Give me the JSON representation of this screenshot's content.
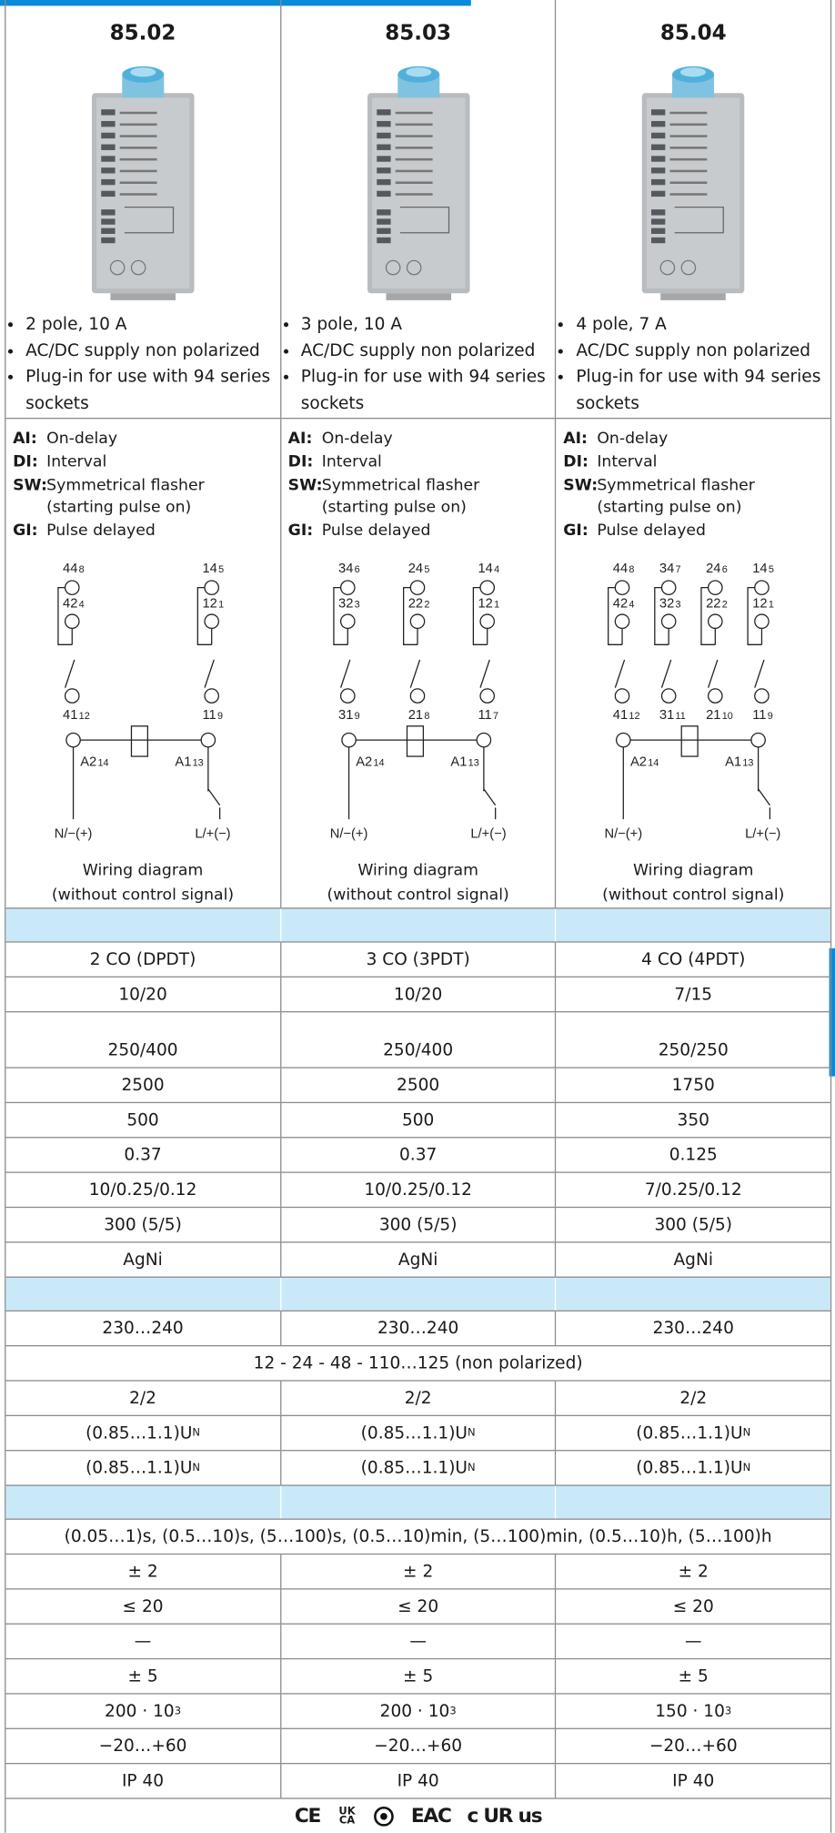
{
  "columns": [
    {
      "title": "85.02",
      "features": [
        "2 pole, 10 A",
        "AC/DC supply non polarized",
        "Plug-in for use with 94 series sockets"
      ],
      "functions": [
        {
          "code": "AI:",
          "text": "On-delay"
        },
        {
          "code": "DI:",
          "text": "Interval"
        },
        {
          "code": "SW:",
          "text": "Symmetrical flasher (starting pulse on)"
        },
        {
          "code": "GI:",
          "text": "Pulse delayed"
        }
      ],
      "wiring": {
        "contacts": [
          {
            "no": "44",
            "no_pin": "8",
            "nc": "42",
            "nc_pin": "4",
            "com": "41",
            "com_pin": "12"
          },
          {
            "no": "14",
            "no_pin": "5",
            "nc": "12",
            "nc_pin": "1",
            "com": "11",
            "com_pin": "9"
          }
        ],
        "coil": [
          {
            "label": "A2",
            "pin": "14"
          },
          {
            "label": "A1",
            "pin": "13"
          }
        ],
        "supply": [
          "N/−(+)",
          "L/+(−)"
        ],
        "caption": [
          "Wiring diagram",
          "(without control signal)"
        ]
      }
    },
    {
      "title": "85.03",
      "features": [
        "3 pole, 10 A",
        "AC/DC supply non polarized",
        "Plug-in for use with 94 series sockets"
      ],
      "functions": [
        {
          "code": "AI:",
          "text": "On-delay"
        },
        {
          "code": "DI:",
          "text": "Interval"
        },
        {
          "code": "SW:",
          "text": "Symmetrical flasher (starting pulse on)"
        },
        {
          "code": "GI:",
          "text": "Pulse delayed"
        }
      ],
      "wiring": {
        "contacts": [
          {
            "no": "34",
            "no_pin": "6",
            "nc": "32",
            "nc_pin": "3",
            "com": "31",
            "com_pin": "9"
          },
          {
            "no": "24",
            "no_pin": "5",
            "nc": "22",
            "nc_pin": "2",
            "com": "21",
            "com_pin": "8"
          },
          {
            "no": "14",
            "no_pin": "4",
            "nc": "12",
            "nc_pin": "1",
            "com": "11",
            "com_pin": "7"
          }
        ],
        "coil": [
          {
            "label": "A2",
            "pin": "14"
          },
          {
            "label": "A1",
            "pin": "13"
          }
        ],
        "supply": [
          "N/−(+)",
          "L/+(−)"
        ],
        "caption": [
          "Wiring diagram",
          "(without control signal)"
        ]
      }
    },
    {
      "title": "85.04",
      "features": [
        "4 pole, 7 A",
        "AC/DC supply non polarized",
        "Plug-in for use with 94 series sockets"
      ],
      "functions": [
        {
          "code": "AI:",
          "text": "On-delay"
        },
        {
          "code": "DI:",
          "text": "Interval"
        },
        {
          "code": "SW:",
          "text": "Symmetrical flasher (starting pulse on)"
        },
        {
          "code": "GI:",
          "text": "Pulse delayed"
        }
      ],
      "wiring": {
        "contacts": [
          {
            "no": "44",
            "no_pin": "8",
            "nc": "42",
            "nc_pin": "4",
            "com": "41",
            "com_pin": "12"
          },
          {
            "no": "34",
            "no_pin": "7",
            "nc": "32",
            "nc_pin": "3",
            "com": "31",
            "com_pin": "11"
          },
          {
            "no": "24",
            "no_pin": "6",
            "nc": "22",
            "nc_pin": "2",
            "com": "21",
            "com_pin": "10"
          },
          {
            "no": "14",
            "no_pin": "5",
            "nc": "12",
            "nc_pin": "1",
            "com": "11",
            "com_pin": "9"
          }
        ],
        "coil": [
          {
            "label": "A2",
            "pin": "14"
          },
          {
            "label": "A1",
            "pin": "13"
          }
        ],
        "supply": [
          "N/−(+)",
          "L/+(−)"
        ],
        "caption": [
          "Wiring diagram",
          "(without control signal)"
        ]
      }
    }
  ],
  "sections": [
    {
      "rows": [
        {
          "cells": [
            "2 CO (DPDT)",
            "3 CO (3PDT)",
            "4 CO (4PDT)"
          ]
        },
        {
          "cells": [
            "10/20",
            "10/20",
            "7/15"
          ]
        },
        {
          "cells": [
            "250/400",
            "250/400",
            "250/250"
          ]
        },
        {
          "cells": [
            "2500",
            "2500",
            "1750"
          ]
        },
        {
          "cells": [
            "500",
            "500",
            "350"
          ]
        },
        {
          "cells": [
            "0.37",
            "0.37",
            "0.125"
          ]
        },
        {
          "cells": [
            "10/0.25/0.12",
            "10/0.25/0.12",
            "7/0.25/0.12"
          ]
        },
        {
          "cells": [
            "300 (5/5)",
            "300 (5/5)",
            "300 (5/5)"
          ]
        },
        {
          "cells": [
            "AgNi",
            "AgNi",
            "AgNi"
          ]
        }
      ]
    },
    {
      "rows": [
        {
          "cells": [
            "230…240",
            "230…240",
            "230…240"
          ]
        },
        {
          "span": "12 - 24 - 48 - 110…125 (non polarized)"
        },
        {
          "cells": [
            "2/2",
            "2/2",
            "2/2"
          ]
        },
        {
          "cells": [
            {
              "text": "(0.85…1.1)U",
              "sub": "N"
            },
            {
              "text": "(0.85…1.1)U",
              "sub": "N"
            },
            {
              "text": "(0.85…1.1)U",
              "sub": "N"
            }
          ]
        },
        {
          "cells": [
            {
              "text": "(0.85…1.1)U",
              "sub": "N"
            },
            {
              "text": "(0.85…1.1)U",
              "sub": "N"
            },
            {
              "text": "(0.85…1.1)U",
              "sub": "N"
            }
          ]
        }
      ]
    },
    {
      "rows": [
        {
          "span": "(0.05…1)s, (0.5…10)s, (5…100)s, (0.5…10)min, (5…100)min, (0.5…10)h, (5…100)h"
        },
        {
          "cells": [
            "± 2",
            "± 2",
            "± 2"
          ]
        },
        {
          "cells": [
            "≤ 20",
            "≤ 20",
            "≤ 20"
          ]
        },
        {
          "cells": [
            "—",
            "—",
            "—"
          ]
        },
        {
          "cells": [
            "± 5",
            "± 5",
            "± 5"
          ]
        },
        {
          "cells": [
            {
              "text": "200 · 10",
              "sup": "3"
            },
            {
              "text": "200 · 10",
              "sup": "3"
            },
            {
              "text": "150 · 10",
              "sup": "3"
            }
          ]
        },
        {
          "cells": [
            "−20…+60",
            "−20…+60",
            "−20…+60"
          ]
        },
        {
          "cells": [
            "IP 40",
            "IP 40",
            "IP 40"
          ]
        }
      ]
    }
  ],
  "certifications": [
    "CE",
    "UK CA",
    "EAC",
    "c UR us"
  ]
}
